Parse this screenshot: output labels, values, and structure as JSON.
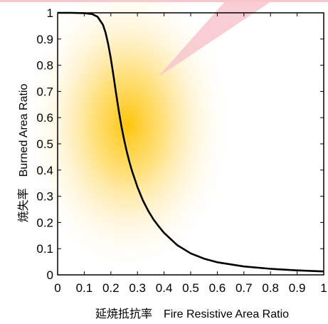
{
  "chart_data": {
    "type": "line",
    "xlabel": "延焼抵抗率　Fire Resistive Area Ratio",
    "ylabel": "焼失率　Burned Area Ratio",
    "xlim": [
      0,
      1
    ],
    "ylim": [
      0,
      1
    ],
    "x_ticks": [
      "0",
      "0.1",
      "0.2",
      "0.3",
      "0.4",
      "0.5",
      "0.6",
      "0.7",
      "0.8",
      "0.9",
      "1"
    ],
    "y_ticks": [
      "0",
      "0.1",
      "0.2",
      "0.3",
      "0.4",
      "0.5",
      "0.6",
      "0.7",
      "0.8",
      "0.9",
      "1"
    ],
    "grid": false,
    "series": [
      {
        "color": "#000000",
        "x": [
          0,
          0.05,
          0.1,
          0.13,
          0.15,
          0.17,
          0.18,
          0.19,
          0.2,
          0.21,
          0.22,
          0.23,
          0.24,
          0.25,
          0.26,
          0.27,
          0.28,
          0.3,
          0.32,
          0.34,
          0.36,
          0.38,
          0.4,
          0.45,
          0.5,
          0.55,
          0.6,
          0.7,
          0.8,
          0.9,
          1.0
        ],
        "y": [
          1.0,
          1.0,
          0.999,
          0.995,
          0.985,
          0.955,
          0.925,
          0.88,
          0.825,
          0.76,
          0.69,
          0.625,
          0.565,
          0.515,
          0.47,
          0.43,
          0.395,
          0.335,
          0.285,
          0.245,
          0.212,
          0.185,
          0.16,
          0.113,
          0.082,
          0.062,
          0.048,
          0.032,
          0.023,
          0.017,
          0.013
        ]
      }
    ],
    "colors": {
      "glow": "#ffc200",
      "pointer": "#f7c6cc",
      "line": "#000000"
    }
  }
}
